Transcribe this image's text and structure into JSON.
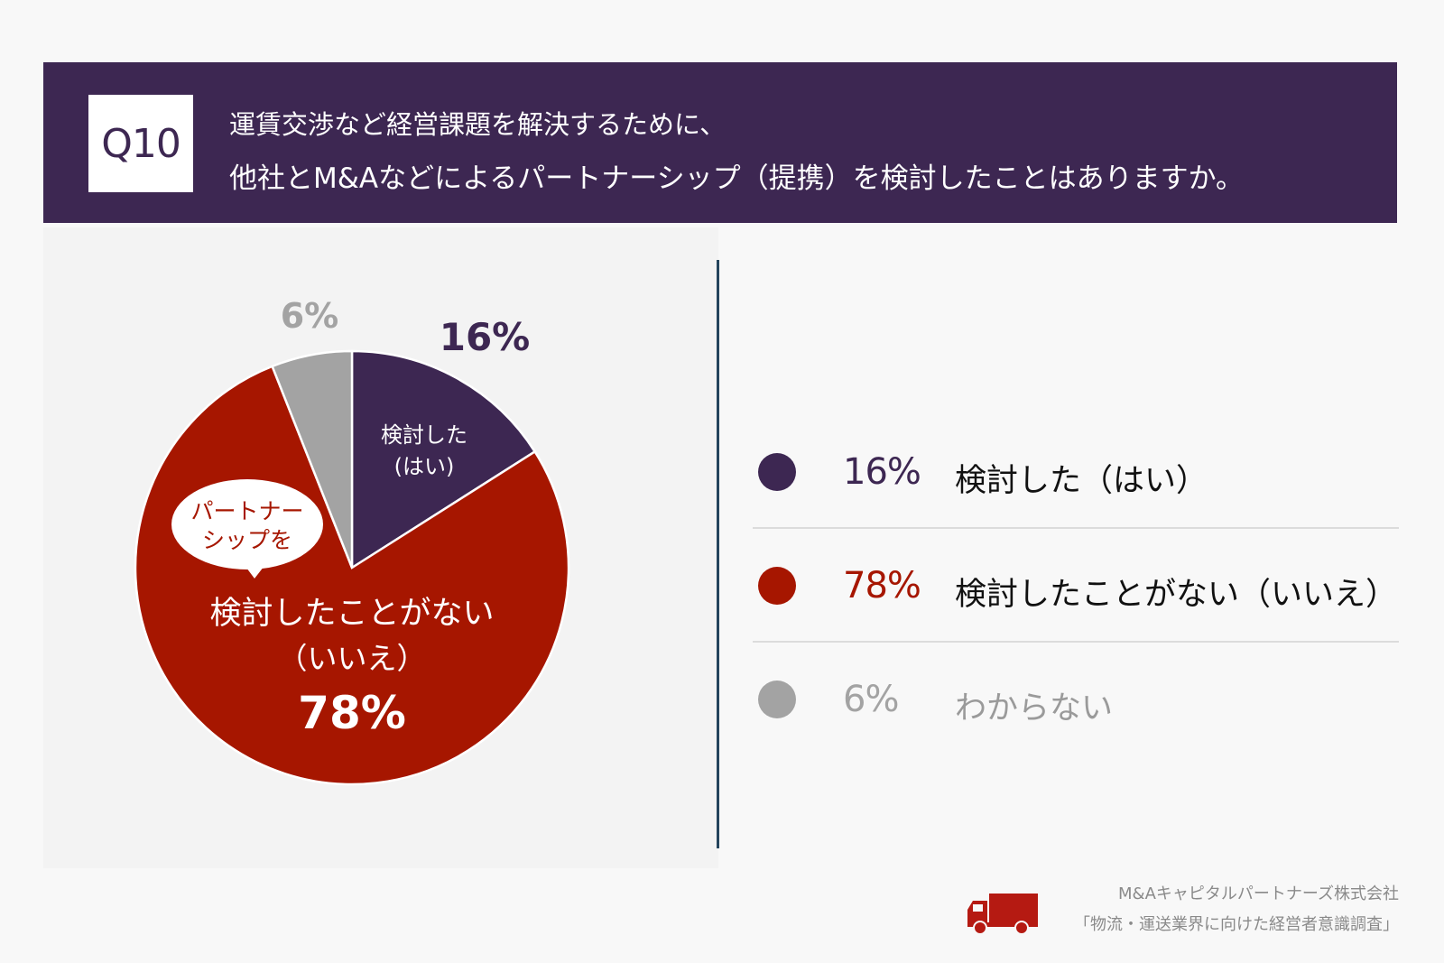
{
  "question": {
    "number": "Q10",
    "line1": "運賃交渉など経営課題を解決するために、",
    "line2": "他社とM&Aなどによるパートナーシップ（提携）を検討したことはありますか。"
  },
  "colors": {
    "header_bg": "#3d2752",
    "yes": "#3d2752",
    "no": "#a61600",
    "unknown": "#a3a3a3"
  },
  "chart_data": {
    "type": "pie",
    "title": "運賃交渉など経営課題を解決するために、他社とM&Aなどによるパートナーシップ（提携）を検討したことはありますか。",
    "slices": [
      {
        "label": "検討した（はい）",
        "value": 16,
        "display": "16%",
        "color": "#3d2752",
        "inner_label": [
          "検討した",
          "(はい)"
        ]
      },
      {
        "label": "検討したことがない（いいえ）",
        "value": 78,
        "display": "78%",
        "color": "#a61600",
        "inner_label": [
          "検討したことがない",
          "（いいえ）"
        ]
      },
      {
        "label": "わからない",
        "value": 6,
        "display": "6%",
        "color": "#a3a3a3",
        "inner_label": []
      }
    ],
    "callout": [
      "パートナー",
      "シップを"
    ]
  },
  "legend": [
    {
      "pct": "16%",
      "label": "検討した（はい）",
      "color": "#3d2752"
    },
    {
      "pct": "78%",
      "label": "検討したことがない（いいえ）",
      "color": "#a61600"
    },
    {
      "pct": "6%",
      "label": "わからない",
      "color": "#a3a3a3"
    }
  ],
  "footer": {
    "company": "M&Aキャピタルパートナーズ株式会社",
    "survey": "「物流・運送業界に向けた経営者意識調査」"
  }
}
